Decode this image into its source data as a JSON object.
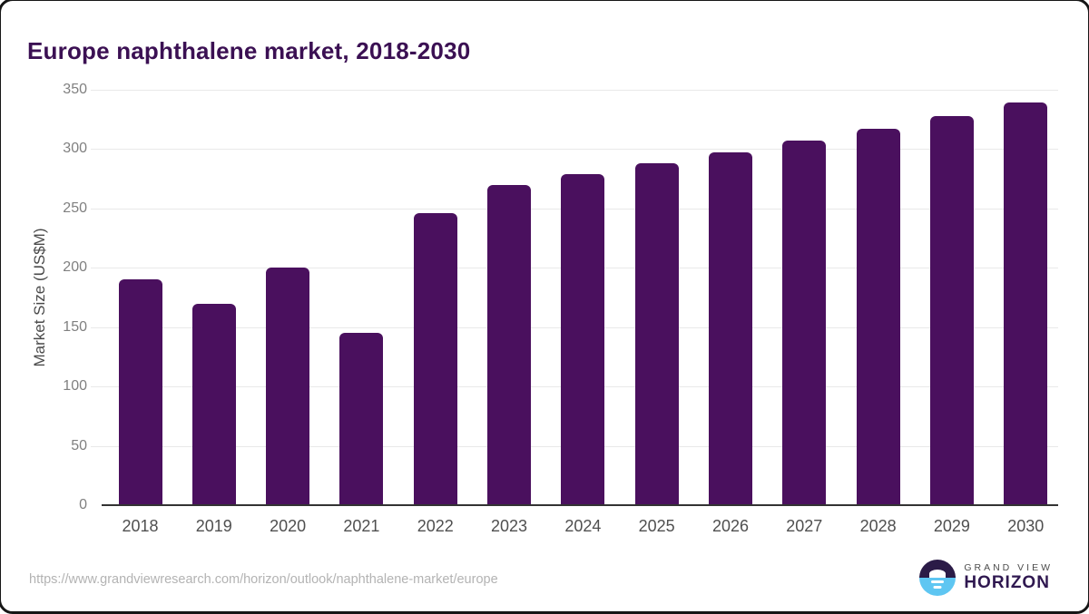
{
  "header": {
    "title": "Europe naphthalene market, 2018-2030"
  },
  "chart_data": {
    "type": "bar",
    "title": "Europe naphthalene market, 2018-2030",
    "categories": [
      "2018",
      "2019",
      "2020",
      "2021",
      "2022",
      "2023",
      "2024",
      "2025",
      "2026",
      "2027",
      "2028",
      "2029",
      "2030"
    ],
    "values": [
      190,
      170,
      200,
      145,
      246,
      270,
      279,
      288,
      297,
      307,
      317,
      328,
      339
    ],
    "xlabel": "",
    "ylabel": "Market Size (US$M)",
    "ylim": [
      0,
      350
    ],
    "yticks": [
      0,
      50,
      100,
      150,
      200,
      250,
      300,
      350
    ],
    "grid": "horizontal",
    "legend_position": "none",
    "bar_color": "#4a105e"
  },
  "colors": {
    "title": "#3b1053",
    "bar": "#4a105e",
    "axis": "#333333",
    "gridline": "#e9e9e9",
    "y_tick_label": "#808080",
    "x_tick_label": "#4f4f4f",
    "url_text": "#b3b3b3",
    "logo_dark": "#2b1b47",
    "logo_blue": "#5ec6f2",
    "logo_wordmark": "#2f1850"
  },
  "footer": {
    "source_url": "https://www.grandviewresearch.com/horizon/outlook/naphthalene-market/europe",
    "logo": {
      "line1": "GRAND VIEW",
      "line2": "HORIZON"
    }
  }
}
